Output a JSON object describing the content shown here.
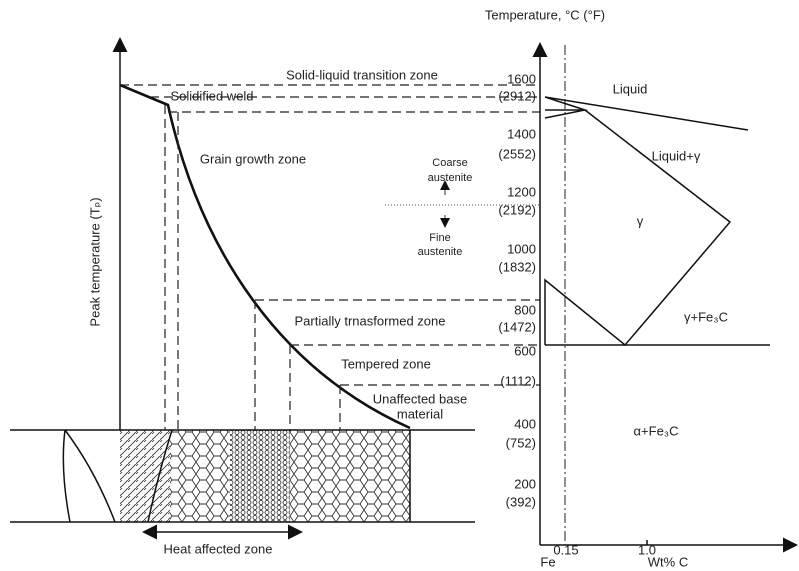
{
  "temperature_axis": {
    "title": "Temperature, °C (°F)",
    "ticks": [
      {
        "celsius": 1600,
        "fahrenheit": "(2912)"
      },
      {
        "celsius": 1400,
        "fahrenheit": "(2552)"
      },
      {
        "celsius": 1200,
        "fahrenheit": "(2192)"
      },
      {
        "celsius": 1000,
        "fahrenheit": "(1832)"
      },
      {
        "celsius": 800,
        "fahrenheit": "(1472)"
      },
      {
        "celsius": 600,
        "fahrenheit": "(1112)"
      },
      {
        "celsius": 400,
        "fahrenheit": "(752)"
      },
      {
        "celsius": 200,
        "fahrenheit": "(392)"
      }
    ]
  },
  "peak_axis": {
    "title": "Peak temperature (Tₚ)"
  },
  "zones": {
    "solid_liquid": "Solid-liquid transition zone",
    "solidified_weld": "Solidified weld",
    "grain_growth": "Grain growth zone",
    "coarse": [
      "Coarse",
      "austenite"
    ],
    "fine": [
      "Fine",
      "austenite"
    ],
    "partially_transformed": "Partially trnasformed zone",
    "tempered": "Tempered zone",
    "unaffected": [
      "Unaffected base",
      "material"
    ],
    "haz": "Heat affected zone"
  },
  "phases": {
    "liquid": "Liquid",
    "liquid_gamma": "Liquid+γ",
    "gamma": "γ",
    "gamma_fe3c": "γ+Fe₃C",
    "alpha_fe3c": "α+Fe₃C"
  },
  "composition_axis": {
    "ticks": [
      "0.15",
      "1.0"
    ],
    "origin": "Fe",
    "title": "Wt% C"
  }
}
